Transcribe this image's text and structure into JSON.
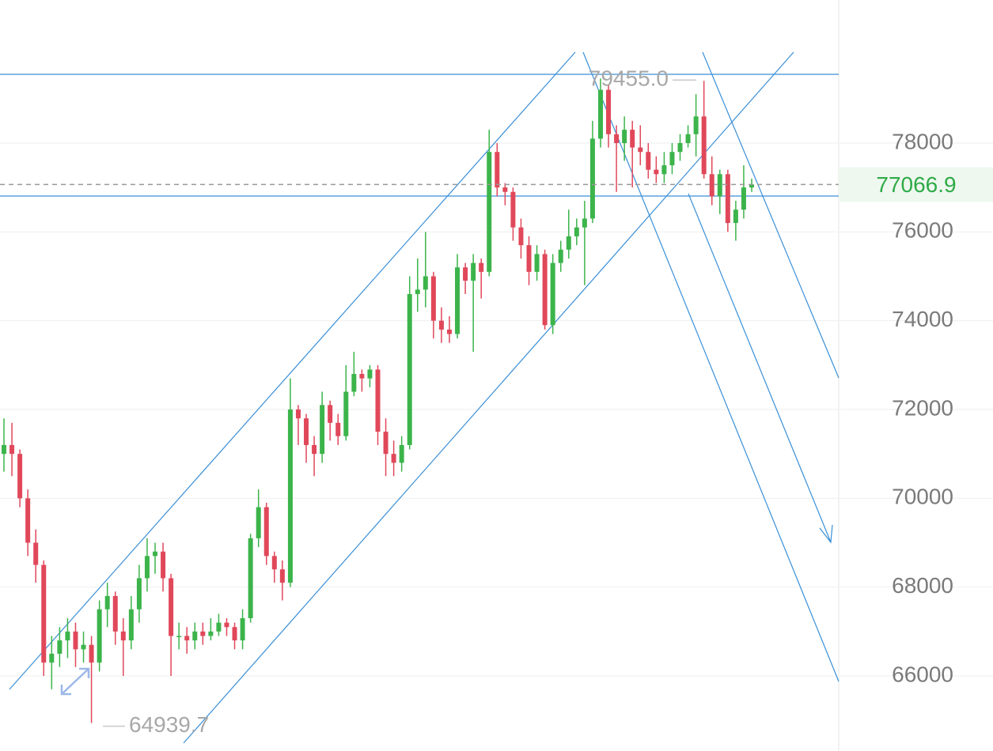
{
  "chart_data": {
    "type": "candlestick",
    "ylim": [
      64309,
      81222
    ],
    "yticks": [
      66000,
      68000,
      70000,
      72000,
      74000,
      76000,
      78000
    ],
    "grid": true,
    "up_color": "#3cb44b",
    "down_color": "#e0485a",
    "open": [
      71000,
      71200,
      71000,
      70000,
      69000,
      68500,
      66300,
      66500,
      66800,
      67000,
      66600,
      66700,
      66300,
      67500,
      67800,
      67000,
      66800,
      67500,
      68200,
      68700,
      68800,
      68200,
      66900,
      66900,
      66800,
      67000,
      66900,
      67000,
      67200,
      67100,
      66800,
      67300,
      69100,
      69800,
      68700,
      68400,
      68100,
      72000,
      71800,
      71200,
      71000,
      72100,
      71700,
      71400,
      72400,
      72800,
      72700,
      72900,
      71500,
      71000,
      70800,
      71200,
      74600,
      74700,
      75000,
      74000,
      73800,
      73700,
      75200,
      74900,
      75300,
      75100,
      77800,
      77000,
      76900,
      76100,
      75700,
      75100,
      75500,
      73900,
      75300,
      75600,
      75900,
      76100,
      76300,
      78100,
      79200,
      78200,
      78000,
      78300,
      77900,
      77800,
      77400,
      77300,
      77500,
      77800,
      78000,
      78200,
      78600,
      77300,
      76800,
      77300,
      76200,
      76500,
      77000
    ],
    "high": [
      71800,
      71700,
      71100,
      70200,
      69300,
      68600,
      66900,
      67100,
      67300,
      67200,
      67000,
      66900,
      67700,
      68100,
      67900,
      67300,
      67800,
      68500,
      69100,
      69000,
      69000,
      68300,
      67200,
      67100,
      67200,
      67200,
      67300,
      67400,
      67300,
      67200,
      67500,
      69200,
      70200,
      69900,
      68800,
      68600,
      72700,
      72100,
      71900,
      71400,
      72400,
      72200,
      71900,
      73000,
      73300,
      72900,
      73000,
      73000,
      71800,
      71300,
      71400,
      75000,
      75400,
      76000,
      75100,
      74300,
      74100,
      75500,
      75300,
      75500,
      75400,
      78300,
      78000,
      77100,
      77000,
      76300,
      75900,
      75700,
      75600,
      75500,
      75800,
      76500,
      76300,
      76700,
      78500,
      79455.0,
      79300,
      78400,
      78600,
      78500,
      78400,
      78000,
      77700,
      77800,
      78000,
      78200,
      78400,
      79100,
      79400,
      77700,
      77400,
      77400,
      76700,
      77500,
      77200
    ],
    "low": [
      70600,
      70500,
      69800,
      68700,
      68100,
      66000,
      65700,
      66200,
      66400,
      66200,
      66300,
      64939.7,
      66100,
      67100,
      66700,
      66000,
      66600,
      67200,
      67900,
      68300,
      67900,
      66000,
      66600,
      66500,
      66600,
      66700,
      66800,
      66900,
      66900,
      66600,
      66600,
      67200,
      68900,
      68500,
      68100,
      67700,
      68000,
      71200,
      70800,
      70500,
      70800,
      71300,
      71200,
      71300,
      72300,
      72400,
      72500,
      71200,
      70500,
      70500,
      70600,
      71100,
      74200,
      74300,
      73600,
      73500,
      73500,
      73600,
      74600,
      73300,
      74500,
      75000,
      76800,
      76600,
      75800,
      75400,
      74800,
      74900,
      73800,
      73700,
      75100,
      75400,
      75700,
      74800,
      76200,
      77900,
      77900,
      76900,
      77600,
      77000,
      77500,
      77200,
      77100,
      77100,
      77300,
      77600,
      77900,
      77700,
      77200,
      76600,
      76400,
      76000,
      75800,
      76300,
      76900
    ],
    "close": [
      71200,
      71000,
      70000,
      69000,
      68500,
      66300,
      66500,
      66800,
      67000,
      66600,
      66700,
      66300,
      67500,
      67800,
      67000,
      66800,
      67500,
      68200,
      68700,
      68800,
      68200,
      66900,
      66900,
      66800,
      67000,
      66900,
      67000,
      67200,
      67100,
      66800,
      67300,
      69100,
      69800,
      68700,
      68400,
      68100,
      72000,
      71800,
      71200,
      71000,
      72100,
      71700,
      71400,
      72400,
      72800,
      72700,
      72900,
      71500,
      71000,
      70800,
      71200,
      74600,
      74700,
      75000,
      74000,
      73800,
      73700,
      75200,
      74900,
      75300,
      75100,
      77800,
      77000,
      76900,
      76100,
      75700,
      75100,
      75500,
      73900,
      75300,
      75600,
      75900,
      76100,
      76300,
      78100,
      79200,
      78200,
      78000,
      78300,
      77900,
      77800,
      77400,
      77300,
      77500,
      77800,
      78000,
      78200,
      78600,
      77300,
      76800,
      77300,
      76200,
      76500,
      77000,
      77066.9
    ],
    "last_price": 77066.9,
    "annotations": [
      {
        "value": 79455.0,
        "label": "79455.0"
      },
      {
        "value": 64939.7,
        "label": "64939.7"
      }
    ]
  }
}
